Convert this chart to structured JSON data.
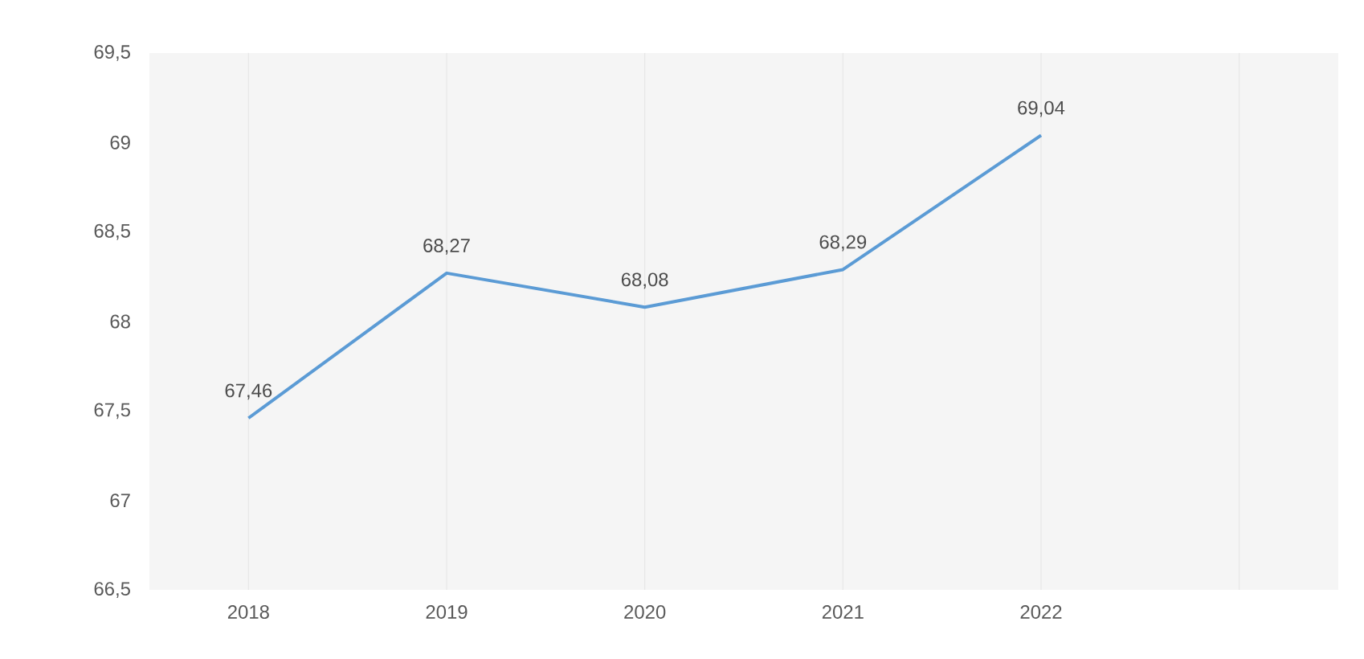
{
  "chart_data": {
    "type": "line",
    "categories": [
      "2018",
      "2019",
      "2020",
      "2021",
      "2022",
      null
    ],
    "values": [
      67.46,
      68.27,
      68.08,
      68.29,
      69.04,
      null
    ],
    "value_labels": [
      "67,46",
      "68,27",
      "68,08",
      "68,29",
      "69,04",
      null
    ],
    "color": "#5b9bd5",
    "ylim": [
      66.5,
      69.5
    ],
    "yticks": [
      {
        "value": 66.5,
        "label": "66,5"
      },
      67,
      {
        "value": 67.5,
        "label": "67,5"
      },
      68,
      {
        "value": 68.5,
        "label": "68,5"
      },
      69,
      {
        "value": 69.5,
        "label": "69,5"
      }
    ],
    "grid": "x",
    "marker": "none",
    "line_style": "solid"
  }
}
